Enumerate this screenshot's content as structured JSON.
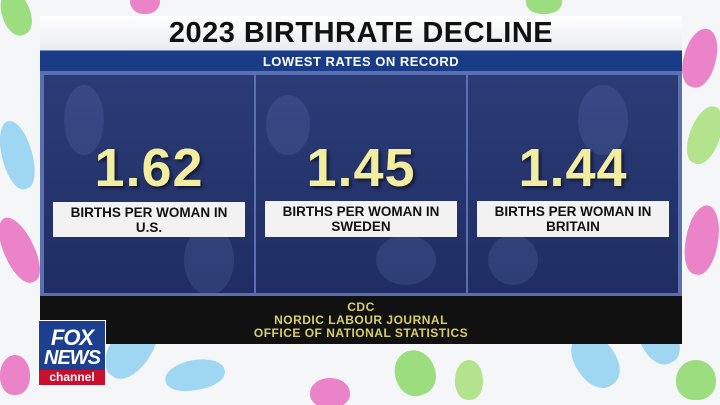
{
  "header": {
    "title": "2023 BIRTHRATE DECLINE",
    "subtitle": "LOWEST RATES ON RECORD"
  },
  "stats": [
    {
      "value": "1.62",
      "label": "BIRTHS PER WOMAN IN U.S."
    },
    {
      "value": "1.45",
      "label": "BIRTHS PER WOMAN IN SWEDEN"
    },
    {
      "value": "1.44",
      "label": "BIRTHS PER WOMAN IN BRITAIN"
    }
  ],
  "sources": [
    "CDC",
    "NORDIC LABOUR JOURNAL",
    "OFFICE OF NATIONAL STATISTICS"
  ],
  "logo": {
    "line1": "FOX",
    "line2": "NEWS",
    "line3": "channel"
  },
  "colors": {
    "header_blue": "#1a3c86",
    "panel_navy": "#27376f",
    "value_yellow": "#f3eda0",
    "source_yellow": "#d9cf6a",
    "logo_red": "#c8102e"
  }
}
